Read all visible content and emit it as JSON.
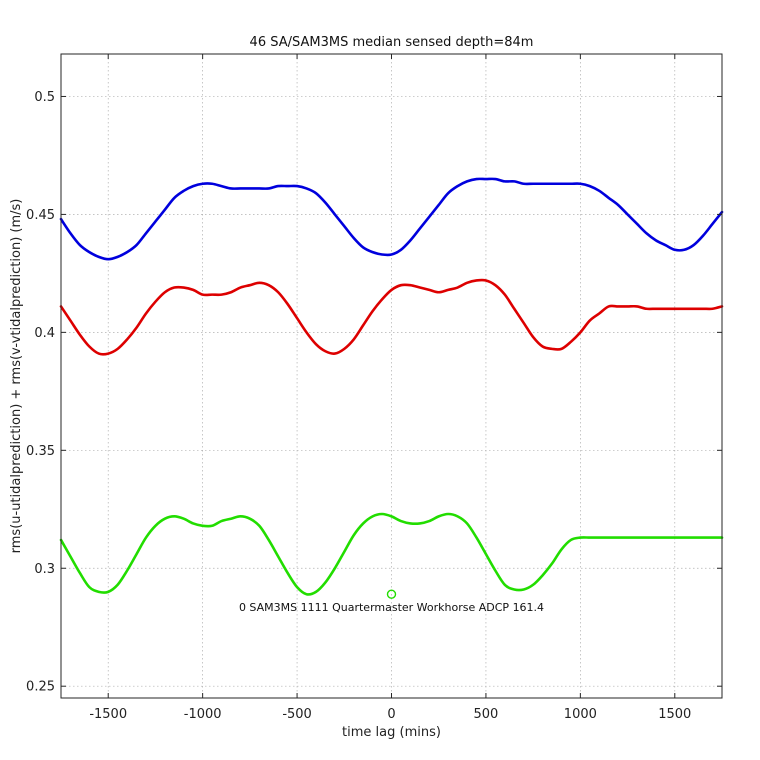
{
  "chart_data": {
    "type": "line",
    "title": "46 SA/SAM3MS median sensed depth=84m",
    "xlabel": "time lag (mins)",
    "ylabel": "rms(u-utidalprediction) + rms(v-vtidalprediction) (m/s)",
    "xlim": [
      -1750,
      1750
    ],
    "ylim": [
      0.245,
      0.518
    ],
    "xticks": [
      -1500,
      -1000,
      -500,
      0,
      500,
      1000,
      1500
    ],
    "yticks": [
      0.25,
      0.3,
      0.35,
      0.4,
      0.45,
      0.5
    ],
    "xtick_labels": [
      "-1500",
      "-1000",
      "-500",
      "0",
      "500",
      "1000",
      "1500"
    ],
    "ytick_labels": [
      "0.25",
      "0.3",
      "0.35",
      "0.4",
      "0.45",
      "0.5"
    ],
    "grid": true,
    "x": [
      -1750,
      -1700,
      -1650,
      -1600,
      -1550,
      -1500,
      -1450,
      -1400,
      -1350,
      -1300,
      -1250,
      -1200,
      -1150,
      -1100,
      -1050,
      -1000,
      -950,
      -900,
      -850,
      -800,
      -750,
      -700,
      -650,
      -600,
      -550,
      -500,
      -450,
      -400,
      -350,
      -300,
      -250,
      -200,
      -150,
      -100,
      -50,
      0,
      50,
      100,
      150,
      200,
      250,
      300,
      350,
      400,
      450,
      500,
      550,
      600,
      650,
      700,
      750,
      800,
      850,
      900,
      950,
      1000,
      1050,
      1100,
      1150,
      1200,
      1250,
      1300,
      1350,
      1400,
      1450,
      1500,
      1550,
      1600,
      1650,
      1700,
      1750
    ],
    "series": [
      {
        "color": "#0000dd",
        "values": [
          0.448,
          0.442,
          0.437,
          0.434,
          0.432,
          0.431,
          0.432,
          0.434,
          0.437,
          0.442,
          0.447,
          0.452,
          0.457,
          0.46,
          0.462,
          0.463,
          0.463,
          0.462,
          0.461,
          0.461,
          0.461,
          0.461,
          0.461,
          0.462,
          0.462,
          0.462,
          0.461,
          0.459,
          0.455,
          0.45,
          0.445,
          0.44,
          0.436,
          0.434,
          0.433,
          0.433,
          0.435,
          0.439,
          0.444,
          0.449,
          0.454,
          0.459,
          0.462,
          0.464,
          0.465,
          0.465,
          0.465,
          0.464,
          0.464,
          0.463,
          0.463,
          0.463,
          0.463,
          0.463,
          0.463,
          0.463,
          0.462,
          0.46,
          0.457,
          0.454,
          0.45,
          0.446,
          0.442,
          0.439,
          0.437,
          0.435,
          0.435,
          0.437,
          0.441,
          0.446,
          0.451
        ]
      },
      {
        "color": "#dd0000",
        "values": [
          0.411,
          0.405,
          0.399,
          0.394,
          0.391,
          0.391,
          0.393,
          0.397,
          0.402,
          0.408,
          0.413,
          0.417,
          0.419,
          0.419,
          0.418,
          0.416,
          0.416,
          0.416,
          0.417,
          0.419,
          0.42,
          0.421,
          0.42,
          0.417,
          0.412,
          0.406,
          0.4,
          0.395,
          0.392,
          0.391,
          0.393,
          0.397,
          0.403,
          0.409,
          0.414,
          0.418,
          0.42,
          0.42,
          0.419,
          0.418,
          0.417,
          0.418,
          0.419,
          0.421,
          0.422,
          0.422,
          0.42,
          0.416,
          0.41,
          0.404,
          0.398,
          0.394,
          0.393,
          0.393,
          0.396,
          0.4,
          0.405,
          0.408,
          0.411,
          0.411,
          0.411,
          0.411,
          0.41,
          0.41,
          0.41,
          0.41,
          0.41,
          0.41,
          0.41,
          0.41,
          0.411
        ]
      },
      {
        "color": "#22dd00",
        "values": [
          0.312,
          0.305,
          0.298,
          0.292,
          0.29,
          0.29,
          0.293,
          0.299,
          0.306,
          0.313,
          0.318,
          0.321,
          0.322,
          0.321,
          0.319,
          0.318,
          0.318,
          0.32,
          0.321,
          0.322,
          0.321,
          0.318,
          0.312,
          0.305,
          0.298,
          0.292,
          0.289,
          0.29,
          0.294,
          0.3,
          0.307,
          0.314,
          0.319,
          0.322,
          0.323,
          0.322,
          0.32,
          0.319,
          0.319,
          0.32,
          0.322,
          0.323,
          0.322,
          0.319,
          0.313,
          0.306,
          0.299,
          0.293,
          0.291,
          0.291,
          0.293,
          0.297,
          0.302,
          0.308,
          0.312,
          0.313,
          0.313,
          0.313,
          0.313,
          0.313,
          0.313,
          0.313,
          0.313,
          0.313,
          0.313,
          0.313,
          0.313,
          0.313,
          0.313,
          0.313,
          0.313
        ]
      }
    ],
    "marker": {
      "x": 0,
      "y": 0.289,
      "color": "#22dd00"
    },
    "annotation": {
      "text": "0 SAM3MS 1111 Quartermaster Workhorse ADCP 161.4",
      "x": 0,
      "y": 0.287
    }
  }
}
